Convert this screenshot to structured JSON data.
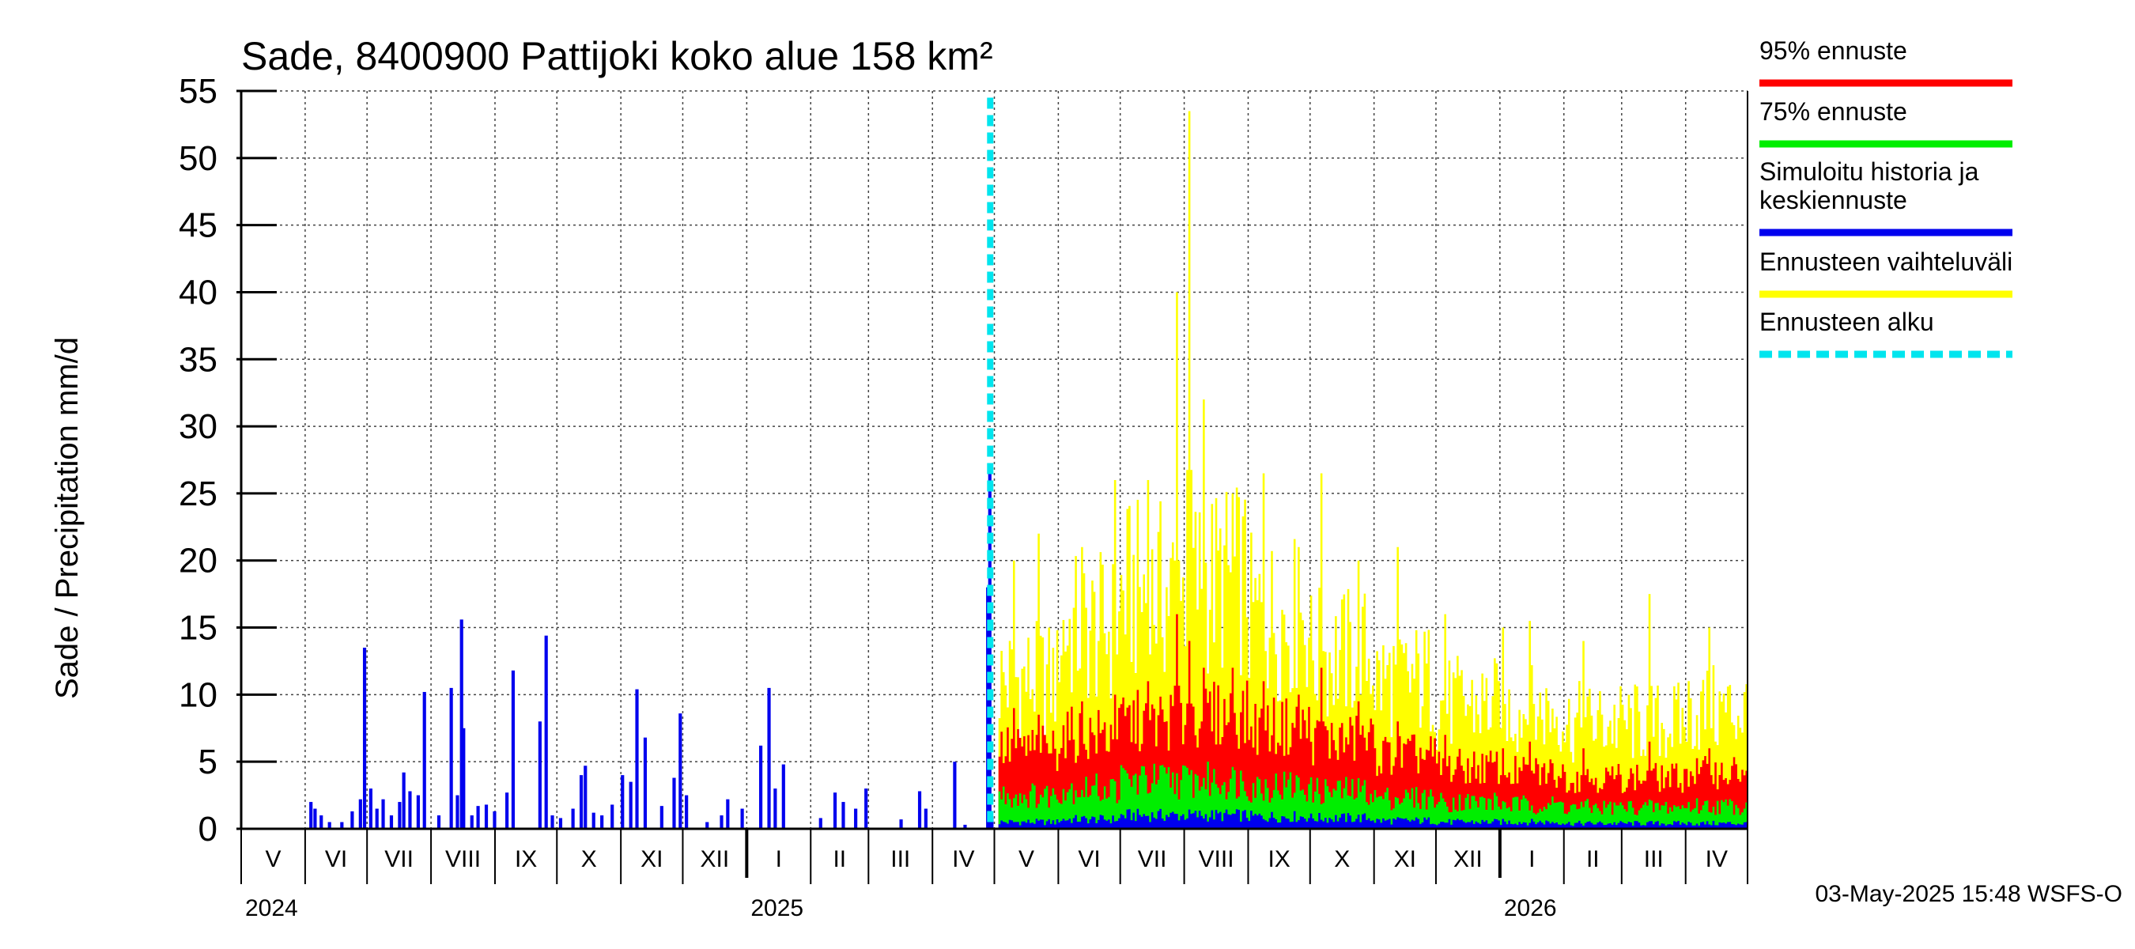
{
  "chart_data": {
    "type": "bar",
    "title": "Sade, 8400900 Pattijoki koko alue 158 km²",
    "ylabel": "Sade / Precipitation   mm/d",
    "ylim": [
      0,
      55
    ],
    "yticks": [
      "0",
      "5",
      "10",
      "15",
      "20",
      "25",
      "30",
      "35",
      "40",
      "45",
      "50",
      "55"
    ],
    "x_start": "2024-05-01",
    "x_end": "2026-05-01",
    "forecast_start": "2025-05-03",
    "grid": true,
    "legend_position": "right",
    "months": [
      "V",
      "VI",
      "VII",
      "VIII",
      "IX",
      "X",
      "XI",
      "XII",
      "I",
      "II",
      "III",
      "IV",
      "V",
      "VI",
      "VII",
      "VIII",
      "IX",
      "X",
      "XI",
      "XII",
      "I",
      "II",
      "III",
      "IV"
    ],
    "years": [
      "2024",
      "2025",
      "2026"
    ],
    "colors": {
      "p95": "#ff0000",
      "p75": "#00ee00",
      "median": "#0000ee",
      "range": "#ffff00",
      "forecast_start": "#00e5ee"
    },
    "series": [
      {
        "name": "95% ennuste",
        "color": "#ff0000"
      },
      {
        "name": "75% ennuste",
        "color": "#00ee00"
      },
      {
        "name": "Simuloitu historia ja keskiennuste",
        "color": "#0000ee"
      },
      {
        "name": "Ennusteen vaihteluväli",
        "color": "#ffff00"
      },
      {
        "name": "Ennusteen alku",
        "color": "#00e5ee"
      }
    ],
    "history": [
      {
        "date": "2024-06-03",
        "value": 2.0
      },
      {
        "date": "2024-06-05",
        "value": 1.5
      },
      {
        "date": "2024-06-08",
        "value": 1.0
      },
      {
        "date": "2024-06-12",
        "value": 0.5
      },
      {
        "date": "2024-06-18",
        "value": 0.5
      },
      {
        "date": "2024-06-23",
        "value": 1.3
      },
      {
        "date": "2024-06-27",
        "value": 2.2
      },
      {
        "date": "2024-06-29",
        "value": 13.5
      },
      {
        "date": "2024-07-02",
        "value": 3.0
      },
      {
        "date": "2024-07-05",
        "value": 1.5
      },
      {
        "date": "2024-07-08",
        "value": 2.2
      },
      {
        "date": "2024-07-12",
        "value": 1.0
      },
      {
        "date": "2024-07-16",
        "value": 2.0
      },
      {
        "date": "2024-07-18",
        "value": 4.2
      },
      {
        "date": "2024-07-21",
        "value": 2.8
      },
      {
        "date": "2024-07-25",
        "value": 2.5
      },
      {
        "date": "2024-07-28",
        "value": 10.2
      },
      {
        "date": "2024-08-04",
        "value": 1.0
      },
      {
        "date": "2024-08-10",
        "value": 10.5
      },
      {
        "date": "2024-08-13",
        "value": 2.5
      },
      {
        "date": "2024-08-15",
        "value": 15.6
      },
      {
        "date": "2024-08-16",
        "value": 7.5
      },
      {
        "date": "2024-08-20",
        "value": 1.0
      },
      {
        "date": "2024-08-23",
        "value": 1.7
      },
      {
        "date": "2024-08-27",
        "value": 1.8
      },
      {
        "date": "2024-08-31",
        "value": 1.3
      },
      {
        "date": "2024-09-06",
        "value": 2.7
      },
      {
        "date": "2024-09-09",
        "value": 11.8
      },
      {
        "date": "2024-09-22",
        "value": 8.0
      },
      {
        "date": "2024-09-25",
        "value": 14.4
      },
      {
        "date": "2024-09-28",
        "value": 1.0
      },
      {
        "date": "2024-10-02",
        "value": 0.8
      },
      {
        "date": "2024-10-08",
        "value": 1.5
      },
      {
        "date": "2024-10-12",
        "value": 4.0
      },
      {
        "date": "2024-10-14",
        "value": 4.7
      },
      {
        "date": "2024-10-18",
        "value": 1.2
      },
      {
        "date": "2024-10-22",
        "value": 1.0
      },
      {
        "date": "2024-10-27",
        "value": 1.8
      },
      {
        "date": "2024-11-01",
        "value": 4.0
      },
      {
        "date": "2024-11-05",
        "value": 3.5
      },
      {
        "date": "2024-11-08",
        "value": 10.4
      },
      {
        "date": "2024-11-12",
        "value": 6.8
      },
      {
        "date": "2024-11-20",
        "value": 1.7
      },
      {
        "date": "2024-11-26",
        "value": 3.8
      },
      {
        "date": "2024-11-29",
        "value": 8.6
      },
      {
        "date": "2024-12-02",
        "value": 2.5
      },
      {
        "date": "2024-12-12",
        "value": 0.5
      },
      {
        "date": "2024-12-19",
        "value": 1.0
      },
      {
        "date": "2024-12-22",
        "value": 2.2
      },
      {
        "date": "2024-12-29",
        "value": 1.5
      },
      {
        "date": "2025-01-07",
        "value": 6.2
      },
      {
        "date": "2025-01-11",
        "value": 10.5
      },
      {
        "date": "2025-01-14",
        "value": 3.0
      },
      {
        "date": "2025-01-18",
        "value": 4.8
      },
      {
        "date": "2025-02-05",
        "value": 0.8
      },
      {
        "date": "2025-02-12",
        "value": 2.7
      },
      {
        "date": "2025-02-16",
        "value": 2.0
      },
      {
        "date": "2025-02-22",
        "value": 1.5
      },
      {
        "date": "2025-02-27",
        "value": 3.0
      },
      {
        "date": "2025-03-16",
        "value": 0.7
      },
      {
        "date": "2025-03-25",
        "value": 2.8
      },
      {
        "date": "2025-03-28",
        "value": 1.5
      },
      {
        "date": "2025-04-11",
        "value": 5.0
      },
      {
        "date": "2025-04-16",
        "value": 0.3
      },
      {
        "date": "2025-04-27",
        "value": 18.0
      },
      {
        "date": "2025-04-28",
        "value": 26.8
      },
      {
        "date": "2025-04-29",
        "value": 0.8
      }
    ],
    "forecast_monthly": [
      {
        "month": "2025-05",
        "median": 0.5,
        "p75": 2.5,
        "p95": 6.0,
        "max": 12.0
      },
      {
        "month": "2025-06",
        "median": 0.7,
        "p75": 3.0,
        "p95": 7.0,
        "max": 16.0
      },
      {
        "month": "2025-07",
        "median": 1.0,
        "p75": 3.6,
        "p95": 8.0,
        "max": 19.0
      },
      {
        "month": "2025-08",
        "median": 1.0,
        "p75": 3.6,
        "p95": 8.5,
        "max": 20.0
      },
      {
        "month": "2025-09",
        "median": 0.9,
        "p75": 3.2,
        "p95": 7.6,
        "max": 17.0
      },
      {
        "month": "2025-10",
        "median": 0.8,
        "p75": 2.8,
        "p95": 6.6,
        "max": 14.0
      },
      {
        "month": "2025-11",
        "median": 0.6,
        "p75": 2.3,
        "p95": 5.5,
        "max": 12.0
      },
      {
        "month": "2025-12",
        "median": 0.5,
        "p75": 2.0,
        "p95": 4.6,
        "max": 10.0
      },
      {
        "month": "2026-01",
        "median": 0.5,
        "p75": 1.8,
        "p95": 4.2,
        "max": 9.5
      },
      {
        "month": "2026-02",
        "median": 0.4,
        "p75": 1.6,
        "p95": 3.8,
        "max": 8.5
      },
      {
        "month": "2026-03",
        "median": 0.4,
        "p75": 1.6,
        "p95": 3.8,
        "max": 8.5
      },
      {
        "month": "2026-04",
        "median": 0.4,
        "p75": 1.7,
        "p95": 4.2,
        "max": 9.5
      }
    ],
    "forecast_peaks": [
      {
        "date": "2025-05-10",
        "max": 20.0,
        "p95": 9.0
      },
      {
        "date": "2025-05-22",
        "max": 22.0,
        "p95": 8.5
      },
      {
        "date": "2025-06-12",
        "max": 21.0,
        "p95": 9.5
      },
      {
        "date": "2025-06-28",
        "max": 26.0,
        "p95": 10.0
      },
      {
        "date": "2025-07-14",
        "max": 26.0,
        "p95": 11.0
      },
      {
        "date": "2025-07-28",
        "max": 40.0,
        "p95": 16.0
      },
      {
        "date": "2025-08-03",
        "max": 53.5,
        "p95": 14.0
      },
      {
        "date": "2025-08-10",
        "max": 32.0,
        "p95": 12.0
      },
      {
        "date": "2025-08-24",
        "max": 25.0,
        "p95": 12.0
      },
      {
        "date": "2025-09-08",
        "max": 26.5,
        "p95": 11.0
      },
      {
        "date": "2025-09-25",
        "max": 21.0,
        "p95": 10.0
      },
      {
        "date": "2025-10-06",
        "max": 26.5,
        "p95": 12.0
      },
      {
        "date": "2025-10-24",
        "max": 20.0,
        "p95": 9.5
      },
      {
        "date": "2025-11-12",
        "max": 21.0,
        "p95": 8.0
      },
      {
        "date": "2025-12-05",
        "max": 16.0,
        "p95": 7.0
      },
      {
        "date": "2026-01-02",
        "max": 15.0,
        "p95": 6.0
      },
      {
        "date": "2026-01-15",
        "max": 15.5,
        "p95": 6.5
      },
      {
        "date": "2026-02-10",
        "max": 14.0,
        "p95": 6.0
      },
      {
        "date": "2026-03-14",
        "max": 17.5,
        "p95": 6.5
      },
      {
        "date": "2026-04-12",
        "max": 15.0,
        "p95": 6.0
      }
    ]
  },
  "footer": {
    "timestamp": "03-May-2025 15:48 WSFS-O"
  }
}
